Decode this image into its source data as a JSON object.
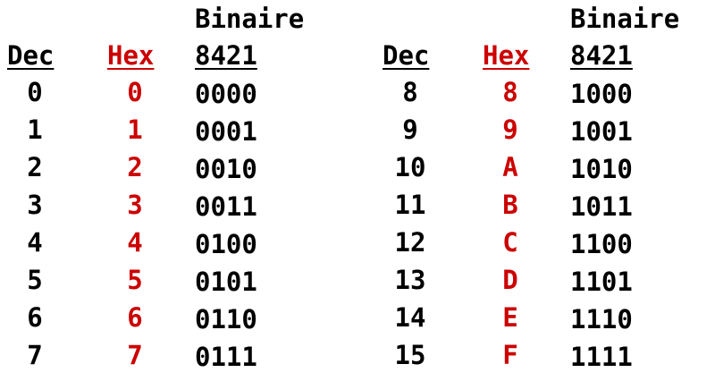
{
  "headers": {
    "dec": "Dec",
    "hex": "Hex",
    "binary_top": "Binaire",
    "binary_weights": "8421"
  },
  "colors": {
    "text": "#000000",
    "hex_column": "#cc0000"
  },
  "left_rows": [
    {
      "dec": "0",
      "hex": "0",
      "bin": "0000"
    },
    {
      "dec": "1",
      "hex": "1",
      "bin": "0001"
    },
    {
      "dec": "2",
      "hex": "2",
      "bin": "0010"
    },
    {
      "dec": "3",
      "hex": "3",
      "bin": "0011"
    },
    {
      "dec": "4",
      "hex": "4",
      "bin": "0100"
    },
    {
      "dec": "5",
      "hex": "5",
      "bin": "0101"
    },
    {
      "dec": "6",
      "hex": "6",
      "bin": "0110"
    },
    {
      "dec": "7",
      "hex": "7",
      "bin": "0111"
    }
  ],
  "right_rows": [
    {
      "dec": "8",
      "hex": "8",
      "bin": "1000"
    },
    {
      "dec": "9",
      "hex": "9",
      "bin": "1001"
    },
    {
      "dec": "10",
      "hex": "A",
      "bin": "1010"
    },
    {
      "dec": "11",
      "hex": "B",
      "bin": "1011"
    },
    {
      "dec": "12",
      "hex": "C",
      "bin": "1100"
    },
    {
      "dec": "13",
      "hex": "D",
      "bin": "1101"
    },
    {
      "dec": "14",
      "hex": "E",
      "bin": "1110"
    },
    {
      "dec": "15",
      "hex": "F",
      "bin": "1111"
    }
  ]
}
